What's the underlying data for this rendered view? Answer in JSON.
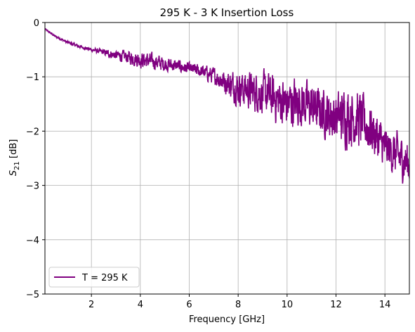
{
  "chart_data": {
    "type": "line",
    "title": "295 K - 3 K Insertion Loss",
    "xlabel": "Frequency [GHz]",
    "ylabel": "S21 [dB]",
    "xlim": [
      0.1,
      15.0
    ],
    "ylim": [
      -5,
      0
    ],
    "x_ticks": [
      2,
      4,
      6,
      8,
      10,
      12,
      14
    ],
    "y_ticks": [
      -5,
      -4,
      -3,
      -2,
      -1,
      0
    ],
    "x_tick_labels": [
      "2",
      "4",
      "6",
      "8",
      "10",
      "12",
      "14"
    ],
    "y_tick_labels": [
      "−5",
      "−4",
      "−3",
      "−2",
      "−1",
      "0"
    ],
    "grid": true,
    "legend": {
      "placement": "lower-left"
    },
    "series": [
      {
        "name": "T = 295 K",
        "color": "#800080",
        "trend_x": [
          0.1,
          0.5,
          1.0,
          1.5,
          2.0,
          2.5,
          3.0,
          3.5,
          4.0,
          4.5,
          5.0,
          5.5,
          6.0,
          6.5,
          7.0,
          7.5,
          8.0,
          8.5,
          9.0,
          9.5,
          10.0,
          10.5,
          11.0,
          11.5,
          12.0,
          12.5,
          13.0,
          13.5,
          14.0,
          14.5,
          15.0
        ],
        "trend_y": [
          -0.12,
          -0.25,
          -0.36,
          -0.44,
          -0.5,
          -0.55,
          -0.6,
          -0.64,
          -0.68,
          -0.72,
          -0.76,
          -0.8,
          -0.85,
          -0.9,
          -0.98,
          -1.1,
          -1.2,
          -1.25,
          -1.3,
          -1.4,
          -1.5,
          -1.45,
          -1.55,
          -1.65,
          -1.75,
          -1.7,
          -1.8,
          -2.0,
          -2.3,
          -2.45,
          -2.6
        ],
        "noise_x": [
          0.1,
          2.0,
          3.0,
          4.0,
          5.0,
          6.0,
          7.0,
          8.0,
          9.0,
          10.0,
          11.0,
          12.0,
          12.5,
          13.0,
          14.0,
          15.0
        ],
        "noise_amp": [
          0.02,
          0.05,
          0.12,
          0.22,
          0.2,
          0.15,
          0.22,
          0.45,
          0.55,
          0.7,
          0.6,
          0.65,
          0.8,
          0.75,
          0.55,
          0.6
        ],
        "num_points": 1500
      }
    ]
  }
}
